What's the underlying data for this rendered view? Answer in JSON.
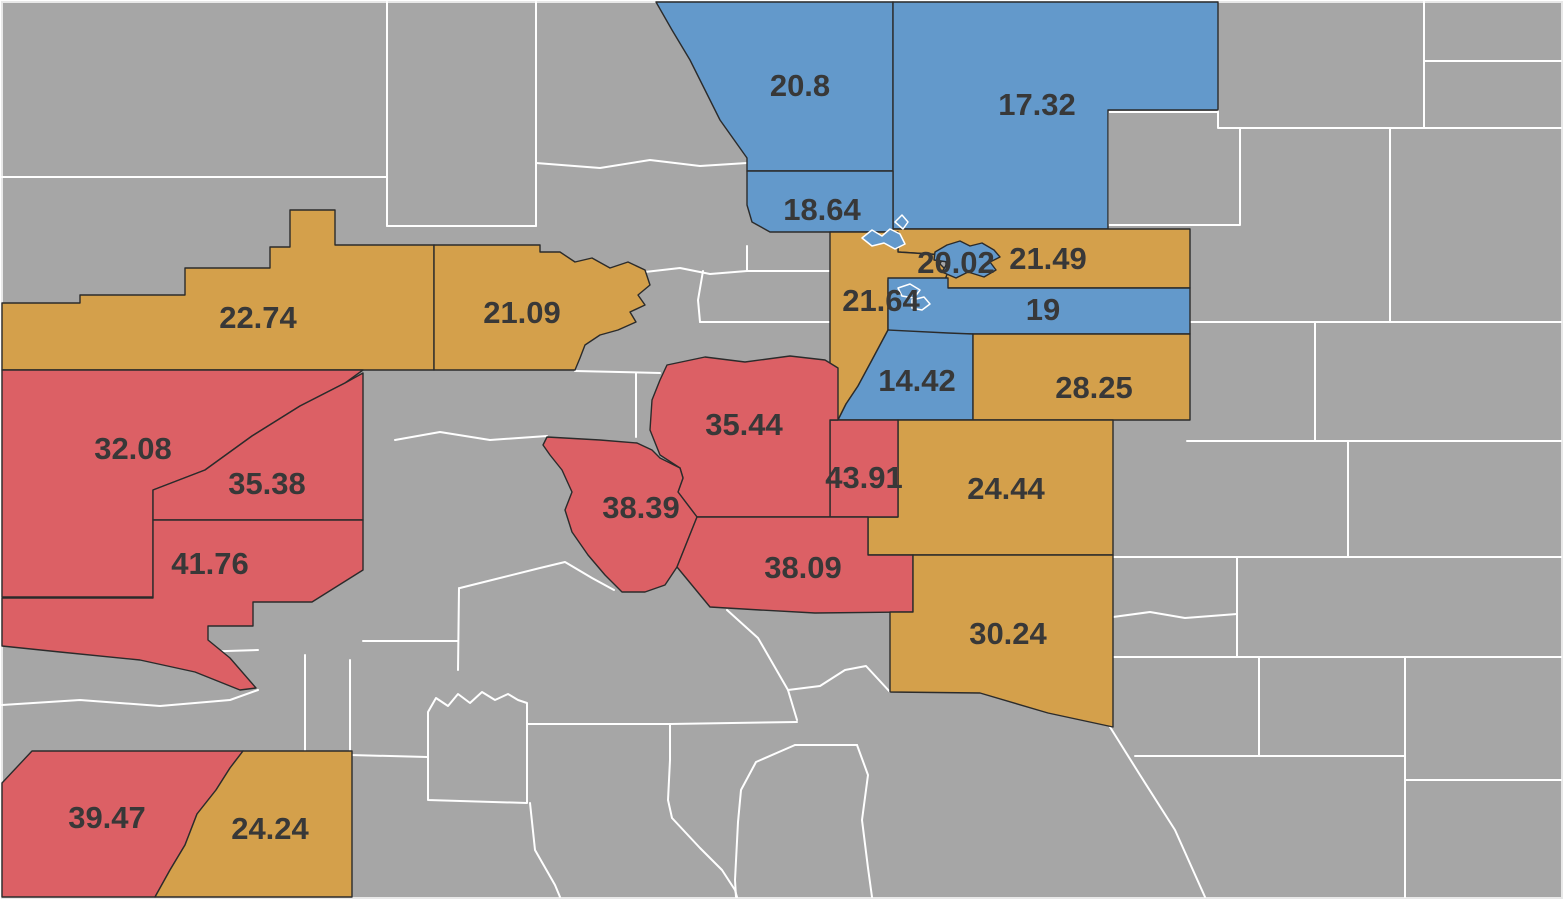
{
  "map": {
    "type": "choropleth",
    "colors": {
      "no_data": "#a6a6a6",
      "low": "#6399cb",
      "mid": "#d4a04b",
      "high": "#dc6065",
      "water": "#6399cb",
      "boundary_gray": "#ffffff",
      "boundary_colored": "#2b2b2b",
      "label": "#383838",
      "page_background": "#ffffff"
    },
    "regions": [
      {
        "id": "r01",
        "value": "20.8",
        "level": "low"
      },
      {
        "id": "r02",
        "value": "17.32",
        "level": "low"
      },
      {
        "id": "r03",
        "value": "18.64",
        "level": "low"
      },
      {
        "id": "r07",
        "value": "22.74",
        "level": "mid"
      },
      {
        "id": "r08",
        "value": "21.09",
        "level": "mid"
      },
      {
        "id": "r09",
        "value": "21.49",
        "level": "mid"
      },
      {
        "id": "r10",
        "value": "21.64",
        "level": "mid"
      },
      {
        "id": "r05",
        "value": "19",
        "level": "low"
      },
      {
        "id": "r06",
        "value": "14.42",
        "level": "low"
      },
      {
        "id": "r11",
        "value": "28.25",
        "level": "mid"
      },
      {
        "id": "r12",
        "value": "24.44",
        "level": "mid"
      },
      {
        "id": "r19",
        "value": "43.91",
        "level": "high"
      },
      {
        "id": "r18",
        "value": "35.44",
        "level": "high"
      },
      {
        "id": "r20",
        "value": "38.39",
        "level": "high"
      },
      {
        "id": "r21",
        "value": "38.09",
        "level": "high"
      },
      {
        "id": "r13",
        "value": "30.24",
        "level": "mid"
      },
      {
        "id": "r15",
        "value": "32.08",
        "level": "high"
      },
      {
        "id": "r16",
        "value": "35.38",
        "level": "high"
      },
      {
        "id": "r17",
        "value": "41.76",
        "level": "high"
      },
      {
        "id": "r22",
        "value": "39.47",
        "level": "high"
      },
      {
        "id": "r14",
        "value": "24.24",
        "level": "mid"
      },
      {
        "id": "r04",
        "value": "20.02",
        "level": "low"
      }
    ]
  }
}
